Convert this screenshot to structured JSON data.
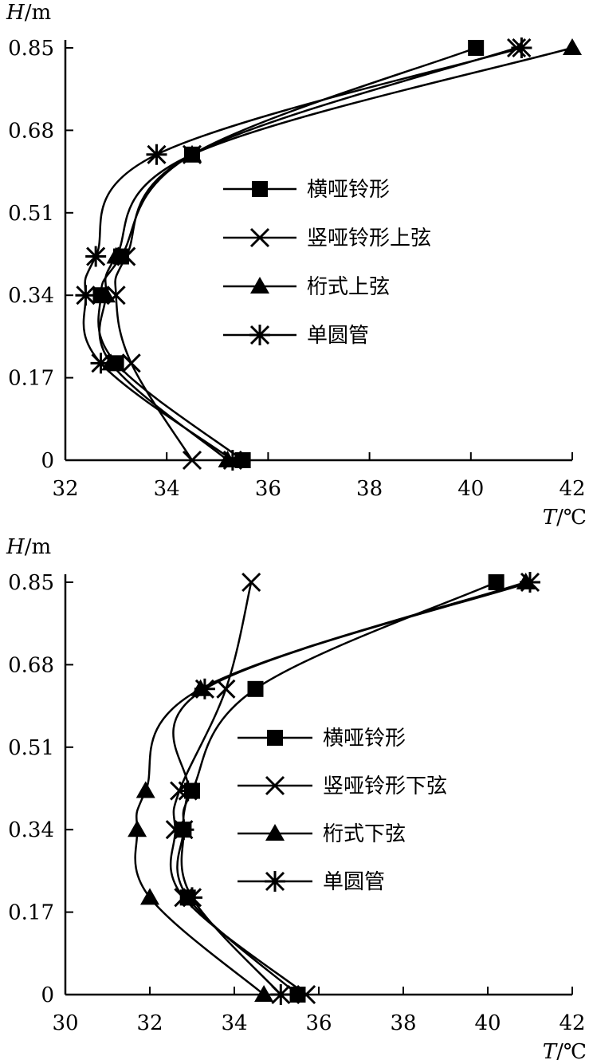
{
  "chart_data": [
    {
      "type": "line",
      "xlabel": {
        "var": "T",
        "unit": "/℃"
      },
      "ylabel": {
        "var": "H",
        "unit": "/m"
      },
      "xlim": [
        32,
        42
      ],
      "ylim": [
        0,
        0.85
      ],
      "xticks": [
        "32",
        "34",
        "36",
        "38",
        "40",
        "42"
      ],
      "yticks": [
        "0",
        "0.17",
        "0.34",
        "0.51",
        "0.68",
        "0.85"
      ],
      "legend_position": "center",
      "series": [
        {
          "name": "横哑铃形",
          "marker": "square",
          "x": [
            35.5,
            33.0,
            32.7,
            33.1,
            34.5,
            40.1
          ],
          "y": [
            0,
            0.2,
            0.34,
            0.42,
            0.63,
            0.85
          ]
        },
        {
          "name": "竖哑铃形上弦",
          "marker": "x",
          "x": [
            34.5,
            33.3,
            33.0,
            33.2,
            34.5,
            40.9
          ],
          "y": [
            0,
            0.2,
            0.34,
            0.42,
            0.63,
            0.85
          ]
        },
        {
          "name": "桁式上弦",
          "marker": "triangle",
          "x": [
            35.2,
            32.9,
            32.8,
            33.0,
            34.5,
            42.0
          ],
          "y": [
            0,
            0.2,
            0.34,
            0.42,
            0.63,
            0.85
          ]
        },
        {
          "name": "单圆管",
          "marker": "asterisk",
          "x": [
            35.3,
            32.7,
            32.4,
            32.6,
            33.8,
            41.0
          ],
          "y": [
            0,
            0.2,
            0.34,
            0.42,
            0.63,
            0.85
          ]
        }
      ]
    },
    {
      "type": "line",
      "xlabel": {
        "var": "T",
        "unit": "/℃"
      },
      "ylabel": {
        "var": "H",
        "unit": "/m"
      },
      "xlim": [
        30,
        42
      ],
      "ylim": [
        0,
        0.85
      ],
      "xticks": [
        "30",
        "32",
        "34",
        "36",
        "38",
        "40",
        "42"
      ],
      "yticks": [
        "0",
        "0.17",
        "0.34",
        "0.51",
        "0.68",
        "0.85"
      ],
      "legend_position": "center",
      "series": [
        {
          "name": "横哑铃形",
          "marker": "square",
          "x": [
            35.5,
            32.9,
            32.8,
            33.0,
            34.5,
            40.2
          ],
          "y": [
            0,
            0.2,
            0.34,
            0.42,
            0.63,
            0.85
          ]
        },
        {
          "name": "竖哑铃形下弦",
          "marker": "x",
          "x": [
            35.7,
            32.8,
            32.6,
            32.7,
            33.8,
            34.4
          ],
          "y": [
            0,
            0.2,
            0.34,
            0.42,
            0.63,
            0.85
          ]
        },
        {
          "name": "桁式下弦",
          "marker": "triangle",
          "x": [
            34.7,
            32.0,
            31.7,
            31.9,
            33.2,
            40.9
          ],
          "y": [
            0,
            0.2,
            0.34,
            0.42,
            0.63,
            0.85
          ]
        },
        {
          "name": "单圆管",
          "marker": "asterisk",
          "x": [
            35.1,
            33.0,
            32.8,
            32.9,
            33.3,
            41.0
          ],
          "y": [
            0,
            0.2,
            0.34,
            0.42,
            0.63,
            0.85
          ]
        }
      ]
    }
  ]
}
